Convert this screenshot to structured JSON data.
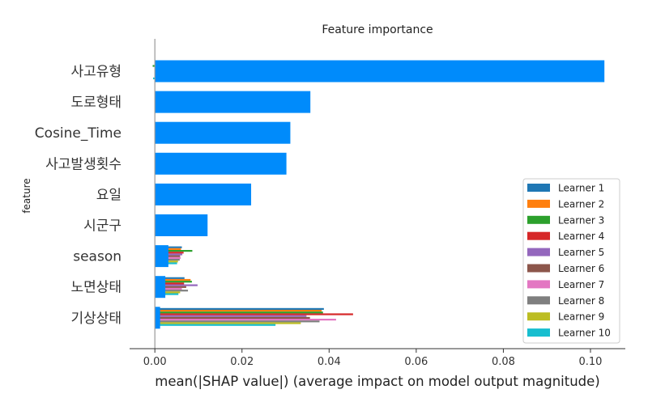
{
  "chart_data": {
    "type": "bar",
    "orientation": "horizontal",
    "title": "Feature importance",
    "xlabel": "mean(|SHAP value|) (average impact on model output magnitude)",
    "ylabel": "feature",
    "xlim": [
      -0.0058,
      0.108
    ],
    "x_ticks": [
      0.0,
      0.02,
      0.04,
      0.06,
      0.08,
      0.1
    ],
    "x_tick_labels": [
      "0.00",
      "0.02",
      "0.04",
      "0.06",
      "0.08",
      "0.10"
    ],
    "grid": false,
    "legend_position": "right",
    "categories": [
      "사고유형",
      "도로형태",
      "Cosine_Time",
      "사고발생횟수",
      "요일",
      "시군구",
      "season",
      "노면상태",
      "기상상태"
    ],
    "series": [
      {
        "name": "",
        "color": "#008bfb",
        "values": [
          0.1032,
          0.0357,
          0.0311,
          0.0302,
          0.0221,
          0.0121,
          0.0031,
          0.0024,
          0.0012
        ]
      }
    ],
    "learners": [
      {
        "name": "Learner 1",
        "color": "#1f77b4",
        "values": [
          0.0,
          0.0,
          0.0,
          0.0,
          0.0,
          0.0,
          0.0062,
          0.0068,
          0.0388
        ]
      },
      {
        "name": "Learner 2",
        "color": "#ff7f0e",
        "values": [
          0.0,
          0.0,
          0.0,
          0.0,
          0.0,
          0.0,
          0.006,
          0.0082,
          0.0383
        ]
      },
      {
        "name": "Learner 3",
        "color": "#2ca02c",
        "values": [
          -0.0005,
          0.0,
          0.0,
          0.0,
          0.0,
          0.0,
          0.0086,
          0.0085,
          0.0386
        ]
      },
      {
        "name": "Learner 4",
        "color": "#d62728",
        "values": [
          0.0,
          0.0,
          0.0,
          0.0,
          0.0,
          0.0,
          0.0066,
          0.0067,
          0.0455
        ]
      },
      {
        "name": "Learner 5",
        "color": "#9467bd",
        "values": [
          0.0,
          0.0,
          0.0,
          0.0,
          0.0,
          0.0,
          0.0063,
          0.0098,
          0.0348
        ]
      },
      {
        "name": "Learner 6",
        "color": "#8c564b",
        "values": [
          0.0,
          0.0,
          0.0,
          0.0,
          0.0,
          0.0,
          0.0058,
          0.0072,
          0.0356
        ]
      },
      {
        "name": "Learner 7",
        "color": "#e377c2",
        "values": [
          0.0,
          0.0,
          0.0,
          0.0,
          0.0,
          0.0,
          0.0059,
          0.0062,
          0.0416
        ]
      },
      {
        "name": "Learner 8",
        "color": "#7f7f7f",
        "values": [
          0.0,
          0.0,
          0.0,
          0.0,
          0.0,
          0.0,
          0.0057,
          0.0076,
          0.0378
        ]
      },
      {
        "name": "Learner 9",
        "color": "#bcbd22",
        "values": [
          0.0,
          0.0,
          0.0,
          0.0,
          0.0,
          0.0,
          0.0053,
          0.0058,
          0.0335
        ]
      },
      {
        "name": "Learner 10",
        "color": "#17becf",
        "values": [
          -0.0004,
          0.0,
          0.0,
          0.0,
          0.0,
          0.0,
          0.0051,
          0.0054,
          0.0277
        ]
      }
    ]
  }
}
